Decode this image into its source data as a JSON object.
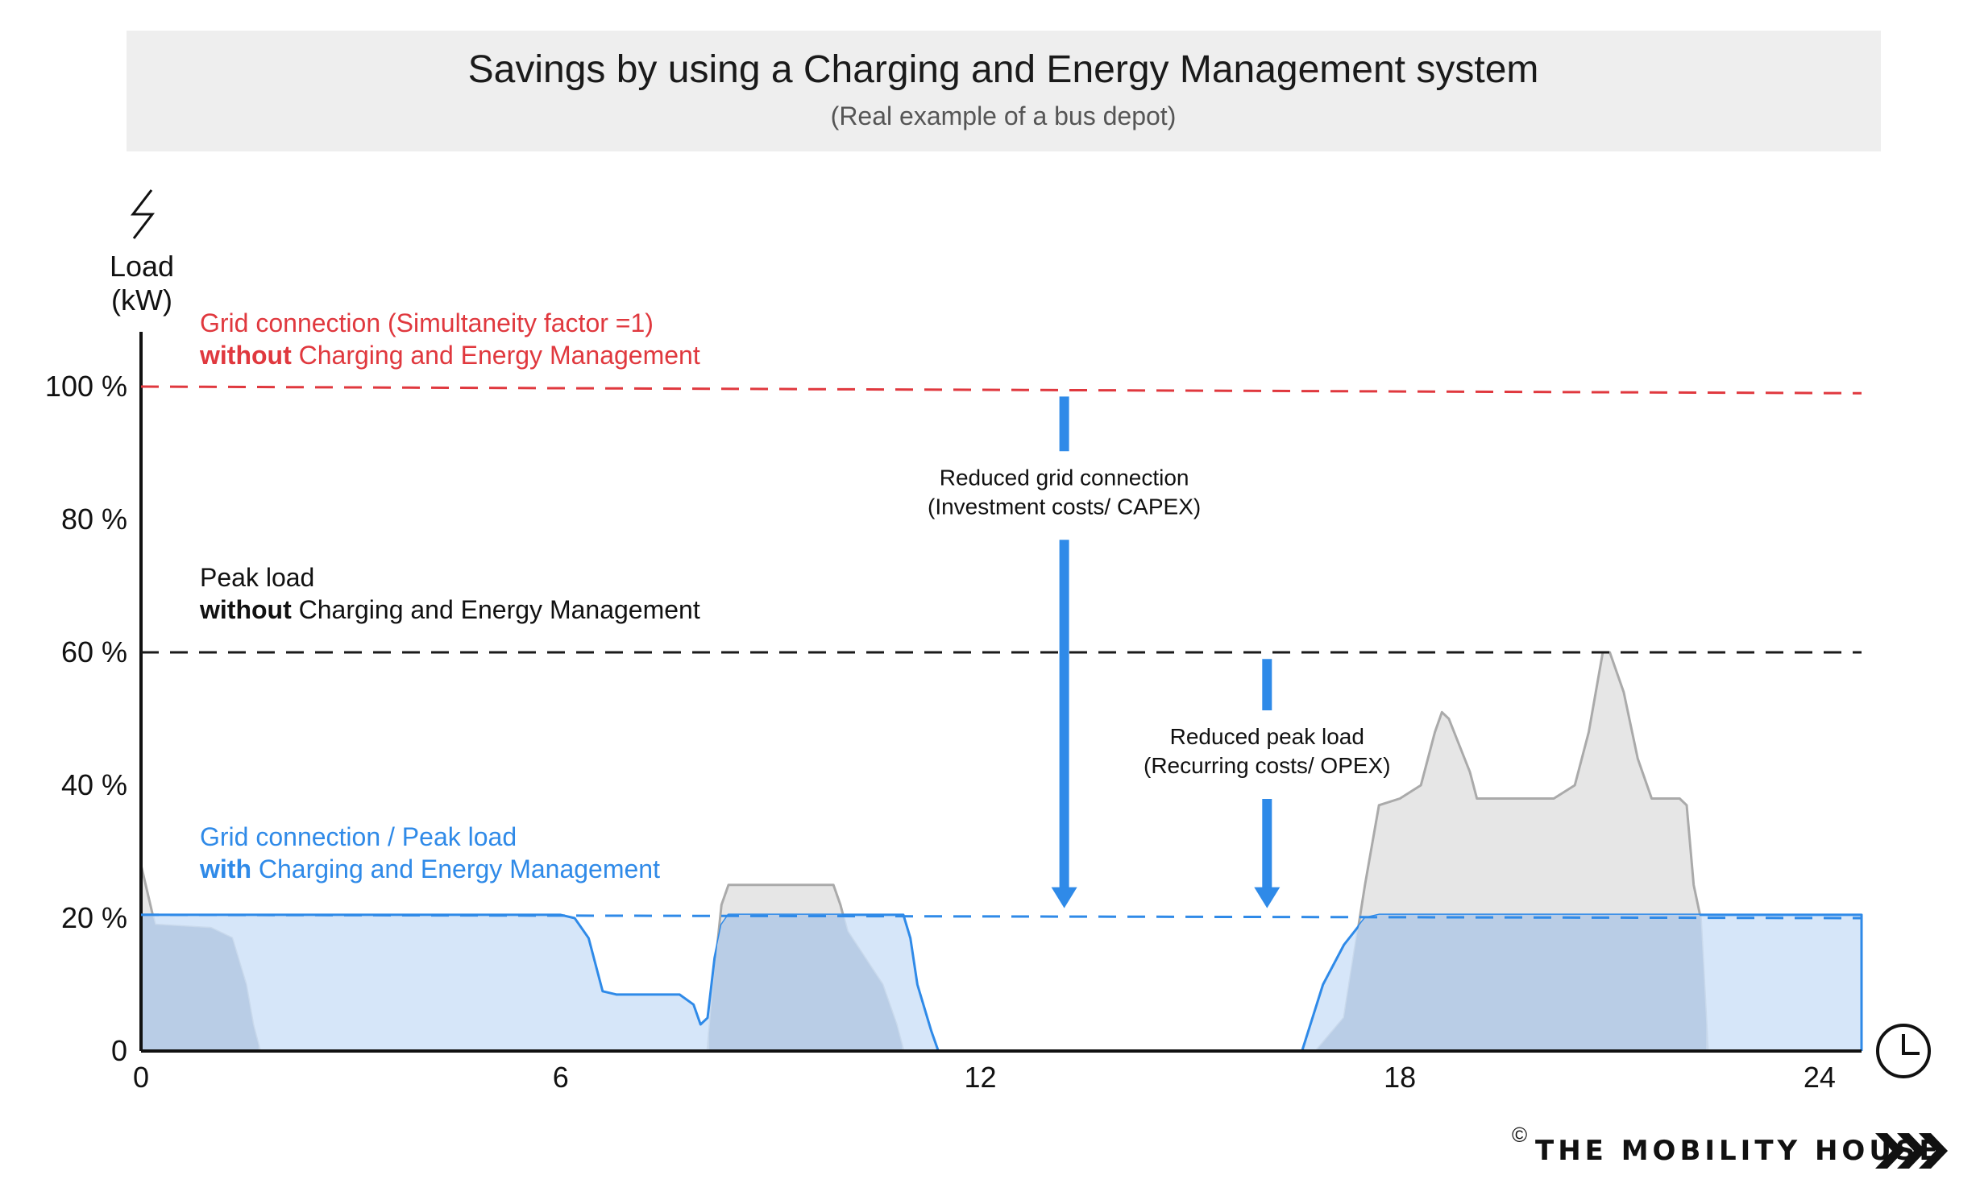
{
  "chart_data": {
    "type": "area",
    "title": "Savings by using a Charging and Energy Management system",
    "subtitle": "(Real example of a bus depot)",
    "ylabel": [
      "Load",
      "(kW)"
    ],
    "xlim": [
      0,
      24.6
    ],
    "ylim": [
      0,
      100
    ],
    "x_ticks": [
      "0",
      "6",
      "12",
      "18",
      "24"
    ],
    "y_ticks": [
      {
        "value": 0,
        "label": "0"
      },
      {
        "value": 20,
        "label": "20 %"
      },
      {
        "value": 40,
        "label": "40 %"
      },
      {
        "value": 60,
        "label": "60 %"
      },
      {
        "value": 80,
        "label": "80 %"
      },
      {
        "value": 100,
        "label": "100 %"
      }
    ],
    "reference_lines": [
      {
        "y_start": 100,
        "y_end": 99,
        "color": "#e0383e",
        "label_lines": [
          [
            {
              "text": "Grid connection (Simultaneity factor =1)",
              "bold": false
            }
          ],
          [
            {
              "text": "without",
              "bold": true
            },
            {
              "text": " Charging and Energy Management",
              "bold": false
            }
          ]
        ]
      },
      {
        "y_start": 60,
        "y_end": 60,
        "color": "#1a1a1a",
        "label_lines": [
          [
            {
              "text": "Peak load",
              "bold": false
            }
          ],
          [
            {
              "text": "without",
              "bold": true
            },
            {
              "text": " Charging and Energy Management",
              "bold": false
            }
          ]
        ]
      },
      {
        "y_start": 20.5,
        "y_end": 20,
        "color": "#2f8ae8",
        "label_lines": [
          [
            {
              "text": "Grid connection / Peak load",
              "bold": false
            }
          ],
          [
            {
              "text": "with",
              "bold": true
            },
            {
              "text": " Charging and Energy Management",
              "bold": false
            }
          ]
        ]
      }
    ],
    "series": [
      {
        "name": "without Charging and Energy Management",
        "color": "#aaaaaa",
        "fill": "#e6e6e6",
        "points": [
          [
            0,
            28
          ],
          [
            0.2,
            19
          ],
          [
            1.0,
            18.5
          ],
          [
            1.3,
            17
          ],
          [
            1.5,
            10
          ],
          [
            1.6,
            4
          ],
          [
            1.7,
            0
          ],
          [
            8.1,
            0
          ],
          [
            8.2,
            12
          ],
          [
            8.3,
            22
          ],
          [
            8.4,
            25
          ],
          [
            9.9,
            25
          ],
          [
            10.0,
            22
          ],
          [
            10.1,
            18
          ],
          [
            10.6,
            10
          ],
          [
            10.8,
            4
          ],
          [
            10.9,
            0
          ],
          [
            16.8,
            0
          ],
          [
            17.2,
            5
          ],
          [
            17.5,
            25
          ],
          [
            17.7,
            37
          ],
          [
            18.0,
            38
          ],
          [
            18.3,
            40
          ],
          [
            18.5,
            48
          ],
          [
            18.6,
            51
          ],
          [
            18.7,
            50
          ],
          [
            19.0,
            42
          ],
          [
            19.1,
            38
          ],
          [
            20.2,
            38
          ],
          [
            20.5,
            40
          ],
          [
            20.7,
            48
          ],
          [
            20.9,
            60
          ],
          [
            21.0,
            60
          ],
          [
            21.2,
            54
          ],
          [
            21.4,
            44
          ],
          [
            21.6,
            38
          ],
          [
            22.0,
            38
          ],
          [
            22.1,
            37
          ],
          [
            22.2,
            25
          ],
          [
            22.3,
            20
          ],
          [
            22.4,
            0
          ]
        ]
      },
      {
        "name": "with Charging and Energy Management",
        "color": "#2f8ae8",
        "fill": "#cfe2f8",
        "points": [
          [
            0,
            20.5
          ],
          [
            6.0,
            20.5
          ],
          [
            6.2,
            20
          ],
          [
            6.4,
            17
          ],
          [
            6.6,
            9
          ],
          [
            6.8,
            8.5
          ],
          [
            7.7,
            8.5
          ],
          [
            7.9,
            7
          ],
          [
            8.0,
            4
          ],
          [
            8.1,
            5
          ],
          [
            8.2,
            14
          ],
          [
            8.3,
            19
          ],
          [
            8.4,
            20.5
          ],
          [
            10.9,
            20.5
          ],
          [
            11.0,
            17
          ],
          [
            11.1,
            10
          ],
          [
            11.3,
            3
          ],
          [
            11.4,
            0
          ],
          [
            16.6,
            0
          ],
          [
            16.9,
            10
          ],
          [
            17.2,
            16
          ],
          [
            17.5,
            20
          ],
          [
            17.7,
            20.5
          ],
          [
            24.6,
            20.5
          ],
          [
            24.6,
            0
          ]
        ]
      }
    ],
    "annotations": [
      {
        "lines": [
          "Reduced grid connection",
          "(Investment costs/ CAPEX)"
        ],
        "x": 13.2,
        "from": 98.5,
        "to": 21.5,
        "text_y": 83
      },
      {
        "lines": [
          "Reduced peak load",
          "(Recurring costs/ OPEX)"
        ],
        "x": 16.1,
        "from": 59,
        "to": 21.5,
        "text_y": 44
      }
    ]
  },
  "icons": {
    "y_axis": "lightning-bolt-icon",
    "x_axis": "clock-icon",
    "brand": "chevrons-icon"
  },
  "footer": {
    "copyright": "©",
    "brand": "THE MOBILITY HOUSE"
  }
}
